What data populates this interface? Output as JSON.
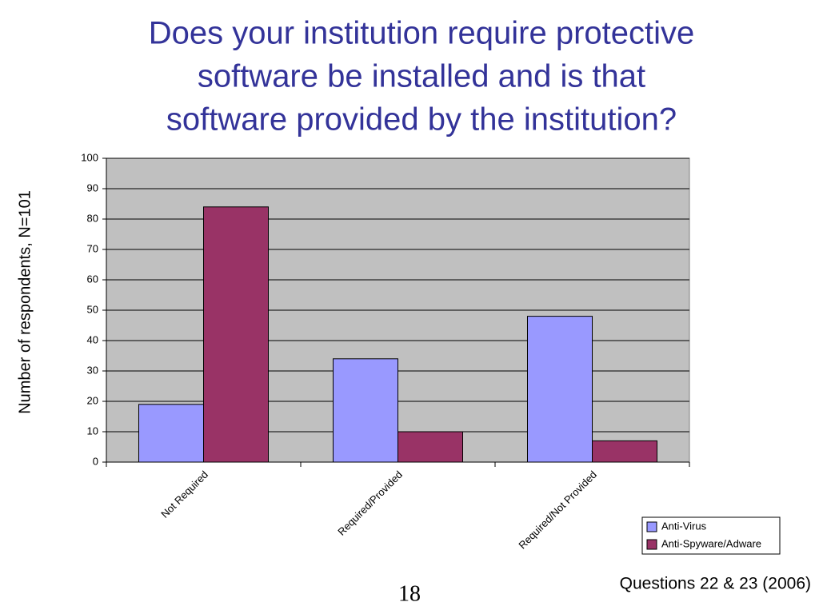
{
  "chart_data": {
    "type": "bar",
    "title": [
      "Does your institution require protective",
      "software be installed and is that",
      "software provided by the institution?"
    ],
    "y_label": "Number of respondents, N=101",
    "categories": [
      "Not Required",
      "Required/Provided",
      "Required/Not Provided"
    ],
    "series": [
      {
        "name": "Anti-Virus",
        "color": "#9999ff",
        "values": [
          19,
          34,
          48
        ]
      },
      {
        "name": "Anti-Spyware/Adware",
        "color": "#993366",
        "values": [
          84,
          10,
          7
        ]
      }
    ],
    "ylim": [
      0,
      100
    ],
    "yticks": [
      0,
      10,
      20,
      30,
      40,
      50,
      60,
      70,
      80,
      90,
      100
    ],
    "grid": true,
    "legend": "bottom-right",
    "plot_background": "#c0c0c0",
    "footnote": "Questions 22 & 23 (2006)",
    "page_number": "18"
  }
}
